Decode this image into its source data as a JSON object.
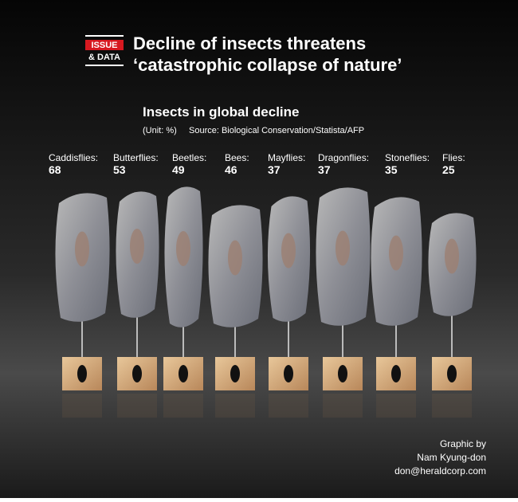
{
  "header": {
    "badge": [
      "ISSUE",
      "& DATA"
    ],
    "title": [
      "Decline of insects threatens",
      "‘catastrophic collapse of nature’"
    ]
  },
  "chart": {
    "title": "Insects in global decline",
    "unit": "(Unit: %)",
    "source": "Source: Biological Conservation/Statista/AFP",
    "items": [
      {
        "label": "Caddisflies:",
        "value": 68
      },
      {
        "label": "Butterflies:",
        "value": 53
      },
      {
        "label": "Beetles:",
        "value": 49
      },
      {
        "label": "Bees:",
        "value": 46
      },
      {
        "label": "Mayflies:",
        "value": 37
      },
      {
        "label": "Dragonflies:",
        "value": 37
      },
      {
        "label": "Stoneflies:",
        "value": 35
      },
      {
        "label": "Flies:",
        "value": 25
      }
    ]
  },
  "credit": [
    "Graphic by",
    "Nam Kyung-don",
    "don@heraldcorp.com"
  ]
}
